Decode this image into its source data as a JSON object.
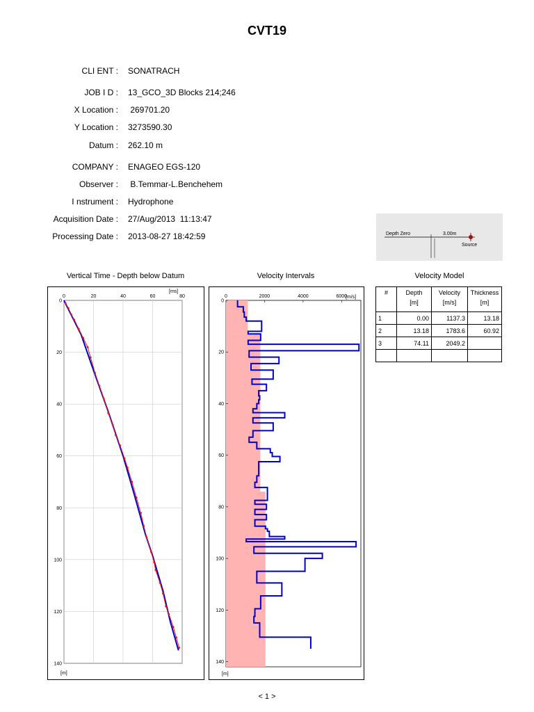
{
  "title": "CVT19",
  "info": [
    {
      "label": "CLI ENT :",
      "value": "SONATRACH"
    },
    {
      "label": "JOB I D :",
      "value": "13_GCO_3D Blocks 214;246"
    },
    {
      "label": "X Location :",
      "value": " 269701.20"
    },
    {
      "label": "Y Location :",
      "value": "3273590.30"
    },
    {
      "label": "Datum :",
      "value": "262.10 m"
    },
    {
      "label": "COMPANY :",
      "value": "ENAGEO EGS-120"
    },
    {
      "label": "Observer :",
      "value": " B.Temmar-L.Benchehem"
    },
    {
      "label": "I nstrument :",
      "value": "Hydrophone"
    },
    {
      "label": "Acquisition Date :",
      "value": "27/Aug/2013  11:13:47"
    },
    {
      "label": "Processing Date :",
      "value": "2013-08-27 18:42:59"
    }
  ],
  "schematic": {
    "depth_zero_label": "Depth Zero",
    "offset_label": "3.00m",
    "source_label": "Source",
    "source_color": "#8b1a1a"
  },
  "sections": {
    "time_depth_title": "Vertical Time - Depth below Datum",
    "velocity_intervals_title": "Velocity Intervals",
    "velocity_model_title": "Velocity Model"
  },
  "velocity_model": {
    "headers": [
      "#",
      "Depth\n[m]",
      "Velocity\n[m/s]",
      "Thickness\n[m]"
    ],
    "header_lines": [
      [
        "#"
      ],
      [
        "Depth",
        "[m]"
      ],
      [
        "Velocity",
        "[m/s]"
      ],
      [
        "Thickness",
        "[m]"
      ]
    ],
    "rows": [
      [
        "1",
        "0.00",
        "1137.3",
        "13.18"
      ],
      [
        "2",
        "13.18",
        "1783.6",
        "60.92"
      ],
      [
        "3",
        "74.11",
        "2049.2",
        ""
      ],
      [
        "",
        "",
        "",
        ""
      ]
    ]
  },
  "chart_data": [
    {
      "type": "line",
      "title": "Vertical Time - Depth below Datum",
      "xlabel": "[ms]",
      "ylabel": "[m]",
      "xlim": [
        0,
        80
      ],
      "ylim": [
        0,
        140
      ],
      "y_inverted": true,
      "x_ticks": [
        "0",
        "20",
        "40",
        "60",
        "80"
      ],
      "y_ticks": [
        "0",
        "20",
        "40",
        "60",
        "80",
        "100",
        "120",
        "140"
      ],
      "grid": true,
      "series": [
        {
          "color": "#0000cc",
          "points": [
            [
              0,
              0
            ],
            [
              11.6,
              13.18
            ],
            [
              20,
              27
            ],
            [
              30,
              43
            ],
            [
              40,
              60
            ],
            [
              47.2,
              74.11
            ],
            [
              55,
              90
            ],
            [
              60,
              98.5
            ],
            [
              67,
              112
            ],
            [
              72,
              124
            ],
            [
              77.5,
              135
            ]
          ]
        },
        {
          "color": "#ee1111",
          "points": [
            [
              1,
              1
            ],
            [
              3,
              3
            ],
            [
              5,
              5.5
            ],
            [
              7,
              7.5
            ],
            [
              10,
              11
            ],
            [
              13,
              14.5
            ],
            [
              16,
              18
            ],
            [
              18,
              22
            ],
            [
              21,
              28
            ],
            [
              24,
              33
            ],
            [
              27,
              38
            ],
            [
              30,
              43.5
            ],
            [
              33,
              48
            ],
            [
              35,
              52
            ],
            [
              38,
              56
            ],
            [
              41,
              61
            ],
            [
              43,
              64.5
            ],
            [
              46,
              70
            ],
            [
              49,
              76
            ],
            [
              52,
              82
            ],
            [
              54,
              87
            ],
            [
              56,
              91.5
            ],
            [
              59,
              97
            ],
            [
              61,
              101
            ],
            [
              62,
              104
            ],
            [
              65,
              109
            ],
            [
              67,
              113
            ],
            [
              69,
              118
            ],
            [
              71,
              121
            ],
            [
              74,
              126
            ],
            [
              76,
              130
            ],
            [
              78,
              134
            ]
          ]
        }
      ]
    },
    {
      "type": "line",
      "title": "Velocity Intervals",
      "xlabel": "[m/s]",
      "ylabel": "[m]",
      "xlim": [
        0,
        7000
      ],
      "ylim": [
        0,
        142
      ],
      "y_inverted": true,
      "x_ticks": [
        "0",
        "2000",
        "4000",
        "6000"
      ],
      "y_ticks": [
        "0",
        "20",
        "40",
        "60",
        "80",
        "100",
        "120",
        "140"
      ],
      "model_band_color": "#ffb3b3",
      "model_band": [
        {
          "from": 0,
          "to": 13.18,
          "velocity": 1137.3
        },
        {
          "from": 13.18,
          "to": 74.11,
          "velocity": 1783.6
        },
        {
          "from": 74.11,
          "to": 142,
          "velocity": 2049.2
        }
      ],
      "interval_color": "#0000cc",
      "interval_steps": [
        [
          0,
          2.5,
          600
        ],
        [
          2.5,
          4.5,
          900
        ],
        [
          4.5,
          6.5,
          950
        ],
        [
          6.5,
          8,
          1050
        ],
        [
          8,
          12,
          1850
        ],
        [
          12,
          13,
          1150
        ],
        [
          13,
          15.5,
          1800
        ],
        [
          15.5,
          17,
          1150
        ],
        [
          17,
          19.5,
          6900
        ],
        [
          19.5,
          22,
          1200
        ],
        [
          22,
          24.5,
          2750
        ],
        [
          24.5,
          27,
          1300
        ],
        [
          27,
          30.5,
          2450
        ],
        [
          30.5,
          32.5,
          1350
        ],
        [
          32.5,
          35,
          2100
        ],
        [
          35,
          37,
          1700
        ],
        [
          37,
          38.5,
          1750
        ],
        [
          38.5,
          40,
          1700
        ],
        [
          40,
          42,
          1600
        ],
        [
          42,
          43.5,
          1400
        ],
        [
          43.5,
          45.5,
          3050
        ],
        [
          45.5,
          47.5,
          1400
        ],
        [
          47.5,
          50.5,
          2450
        ],
        [
          50.5,
          53,
          1400
        ],
        [
          53,
          55,
          1200
        ],
        [
          55,
          57.5,
          1600
        ],
        [
          57.5,
          59,
          2300
        ],
        [
          59,
          60.5,
          2400
        ],
        [
          60.5,
          62.5,
          2800
        ],
        [
          62.5,
          68,
          1700
        ],
        [
          68,
          70.5,
          1600
        ],
        [
          70.5,
          72.5,
          1500
        ],
        [
          72.5,
          77.5,
          2150
        ],
        [
          77.5,
          79,
          1500
        ],
        [
          79,
          81,
          2100
        ],
        [
          81,
          83,
          1500
        ],
        [
          83,
          85,
          2100
        ],
        [
          85,
          87.5,
          1500
        ],
        [
          87.5,
          88.5,
          2050
        ],
        [
          88.5,
          89.5,
          2150
        ],
        [
          89.5,
          91.5,
          2250
        ],
        [
          91.5,
          92.5,
          3050
        ],
        [
          92.5,
          93.5,
          1050
        ],
        [
          93.5,
          95.5,
          6750
        ],
        [
          95.5,
          98,
          1450
        ],
        [
          98,
          100,
          5000
        ],
        [
          100,
          105,
          4100
        ],
        [
          105,
          109.5,
          1600
        ],
        [
          109.5,
          114.5,
          2900
        ],
        [
          114.5,
          119.5,
          1800
        ],
        [
          119.5,
          122.5,
          1500
        ],
        [
          122.5,
          125,
          1450
        ],
        [
          125,
          127.5,
          1750
        ],
        [
          127.5,
          130.5,
          1750
        ],
        [
          130.5,
          135,
          4400
        ]
      ]
    }
  ],
  "footer": "< 1 >"
}
